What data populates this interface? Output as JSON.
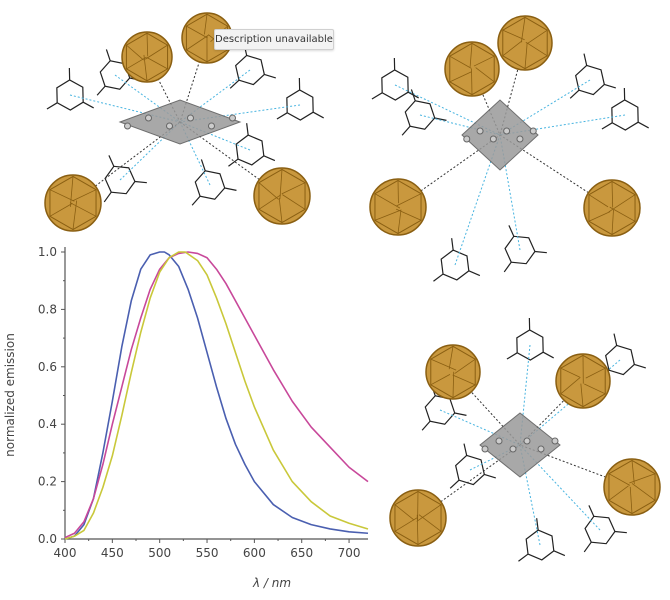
{
  "tooltip": {
    "text": "Description unavailable"
  },
  "structures": [
    {
      "name": "structure-top-left"
    },
    {
      "name": "structure-top-right"
    },
    {
      "name": "structure-bottom-right"
    }
  ],
  "colors": {
    "cage": "#c9983e",
    "cage_edge": "#8a5f12",
    "cluster": "#9a9a9a",
    "bond_n": "#48b4e0",
    "skeleton": "#222222"
  },
  "chart_data": {
    "type": "line",
    "xlabel": "λ / nm",
    "ylabel": "normalized emission",
    "xlim": [
      400,
      720
    ],
    "ylim": [
      0,
      1.0
    ],
    "xticks": [
      400,
      450,
      500,
      550,
      600,
      650,
      700
    ],
    "yticks": [
      "0.0",
      "0.2",
      "0.4",
      "0.6",
      "0.8",
      "1.0"
    ],
    "grid": false,
    "series": [
      {
        "color": "#4a5fb0",
        "x": [
          400,
          410,
          420,
          430,
          440,
          450,
          460,
          470,
          480,
          490,
          500,
          505,
          510,
          520,
          530,
          540,
          550,
          560,
          570,
          580,
          590,
          600,
          620,
          640,
          660,
          680,
          700,
          720
        ],
        "y": [
          0,
          0.01,
          0.05,
          0.14,
          0.3,
          0.48,
          0.67,
          0.83,
          0.94,
          0.99,
          1.0,
          1.0,
          0.99,
          0.95,
          0.87,
          0.77,
          0.65,
          0.53,
          0.42,
          0.33,
          0.26,
          0.2,
          0.12,
          0.075,
          0.05,
          0.035,
          0.025,
          0.02
        ]
      },
      {
        "color": "#c8489a",
        "x": [
          400,
          410,
          420,
          430,
          440,
          450,
          460,
          470,
          480,
          490,
          500,
          510,
          520,
          530,
          540,
          550,
          560,
          570,
          580,
          590,
          600,
          620,
          640,
          660,
          680,
          700,
          720
        ],
        "y": [
          0.005,
          0.02,
          0.06,
          0.14,
          0.26,
          0.4,
          0.53,
          0.66,
          0.77,
          0.87,
          0.94,
          0.98,
          0.995,
          1.0,
          0.995,
          0.98,
          0.94,
          0.89,
          0.83,
          0.77,
          0.71,
          0.59,
          0.48,
          0.39,
          0.32,
          0.25,
          0.2
        ]
      },
      {
        "color": "#c9c83a",
        "x": [
          400,
          410,
          420,
          430,
          440,
          450,
          460,
          470,
          480,
          490,
          500,
          510,
          520,
          527,
          540,
          550,
          560,
          570,
          580,
          590,
          600,
          620,
          640,
          660,
          680,
          700,
          720
        ],
        "y": [
          0,
          0.01,
          0.03,
          0.09,
          0.18,
          0.29,
          0.43,
          0.58,
          0.72,
          0.84,
          0.93,
          0.98,
          1.0,
          1.0,
          0.97,
          0.92,
          0.84,
          0.75,
          0.65,
          0.55,
          0.46,
          0.31,
          0.2,
          0.13,
          0.08,
          0.055,
          0.035
        ]
      }
    ]
  }
}
